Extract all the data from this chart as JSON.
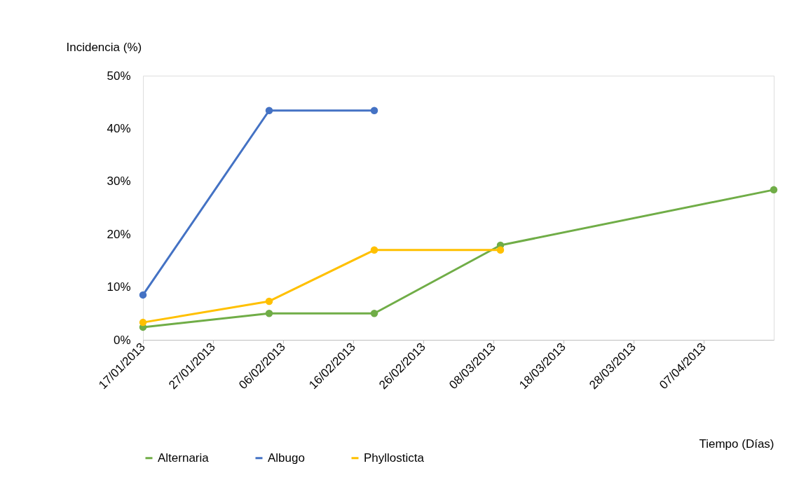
{
  "chart_data": {
    "type": "line",
    "xlabel": "Tiempo (Días)",
    "ylabel": "Incidencia (%)",
    "x": [
      "2013-01-17",
      "2013-02-04",
      "2013-02-19",
      "2013-03-09",
      "2013-04-17"
    ],
    "series": [
      {
        "name": "Alternaria",
        "color": "#70ad47",
        "values": [
          2.4,
          5.0,
          5.0,
          17.9,
          28.4
        ]
      },
      {
        "name": "Albugo",
        "color": "#4472c4",
        "values": [
          8.5,
          43.4,
          43.4,
          null,
          null
        ]
      },
      {
        "name": "Phyllosticta",
        "color": "#ffc000",
        "values": [
          3.3,
          7.3,
          17.0,
          17.0,
          null
        ]
      }
    ],
    "xlim": [
      "2013-01-17",
      "2013-04-17"
    ],
    "xticks": [
      {
        "value": "2013-01-17",
        "label": "17/01/2013"
      },
      {
        "value": "2013-01-27",
        "label": "27/01/2013"
      },
      {
        "value": "2013-02-06",
        "label": "06/02/2013"
      },
      {
        "value": "2013-02-16",
        "label": "16/02/2013"
      },
      {
        "value": "2013-02-26",
        "label": "26/02/2013"
      },
      {
        "value": "2013-03-08",
        "label": "08/03/2013"
      },
      {
        "value": "2013-03-18",
        "label": "18/03/2013"
      },
      {
        "value": "2013-03-28",
        "label": "28/03/2013"
      },
      {
        "value": "2013-04-07",
        "label": "07/04/2013"
      }
    ],
    "ylim": [
      0,
      50
    ],
    "yticks": [
      {
        "value": 0,
        "label": "0%"
      },
      {
        "value": 10,
        "label": "10%"
      },
      {
        "value": 20,
        "label": "20%"
      },
      {
        "value": 30,
        "label": "30%"
      },
      {
        "value": 40,
        "label": "40%"
      },
      {
        "value": 50,
        "label": "50%"
      }
    ],
    "grid": false,
    "legend": "bottom",
    "marker": "circle",
    "line_style": "solid"
  }
}
